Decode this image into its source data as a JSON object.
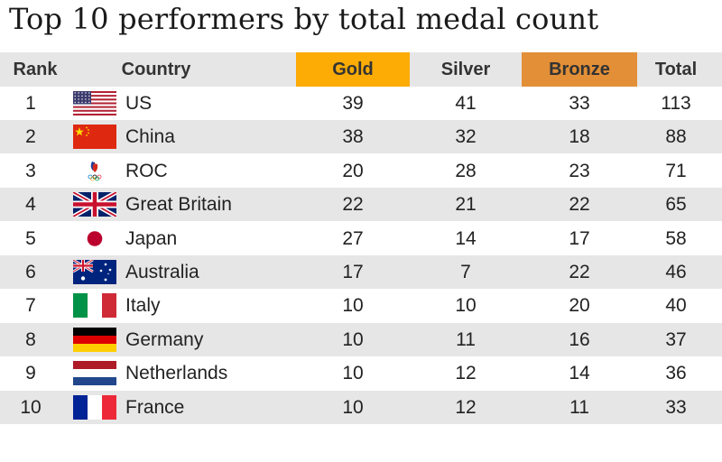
{
  "title": "Top 10 performers by total medal count",
  "colors": {
    "gold": "#fcac05",
    "bronze": "#e28f37",
    "shade": "#e6e6e6"
  },
  "headers": {
    "rank": "Rank",
    "country": "Country",
    "gold": "Gold",
    "silver": "Silver",
    "bronze": "Bronze",
    "total": "Total"
  },
  "chart_data": {
    "type": "table",
    "title": "Top 10 performers by total medal count",
    "columns": [
      "Rank",
      "Country",
      "Gold",
      "Silver",
      "Bronze",
      "Total"
    ],
    "rows": [
      {
        "rank": "1",
        "flag": "us-flag-icon",
        "country": "US",
        "gold": "39",
        "silver": "41",
        "bronze": "33",
        "total": "113"
      },
      {
        "rank": "2",
        "flag": "china-flag-icon",
        "country": "China",
        "gold": "38",
        "silver": "32",
        "bronze": "18",
        "total": "88"
      },
      {
        "rank": "3",
        "flag": "roc-emblem-icon",
        "country": "ROC",
        "gold": "20",
        "silver": "28",
        "bronze": "23",
        "total": "71"
      },
      {
        "rank": "4",
        "flag": "uk-flag-icon",
        "country": "Great Britain",
        "gold": "22",
        "silver": "21",
        "bronze": "22",
        "total": "65"
      },
      {
        "rank": "5",
        "flag": "japan-flag-icon",
        "country": "Japan",
        "gold": "27",
        "silver": "14",
        "bronze": "17",
        "total": "58"
      },
      {
        "rank": "6",
        "flag": "australia-flag-icon",
        "country": "Australia",
        "gold": "17",
        "silver": "7",
        "bronze": "22",
        "total": "46"
      },
      {
        "rank": "7",
        "flag": "italy-flag-icon",
        "country": "Italy",
        "gold": "10",
        "silver": "10",
        "bronze": "20",
        "total": "40"
      },
      {
        "rank": "8",
        "flag": "germany-flag-icon",
        "country": "Germany",
        "gold": "10",
        "silver": "11",
        "bronze": "16",
        "total": "37"
      },
      {
        "rank": "9",
        "flag": "netherlands-flag-icon",
        "country": "Netherlands",
        "gold": "10",
        "silver": "12",
        "bronze": "14",
        "total": "36"
      },
      {
        "rank": "10",
        "flag": "france-flag-icon",
        "country": "France",
        "gold": "10",
        "silver": "12",
        "bronze": "11",
        "total": "33"
      }
    ]
  }
}
